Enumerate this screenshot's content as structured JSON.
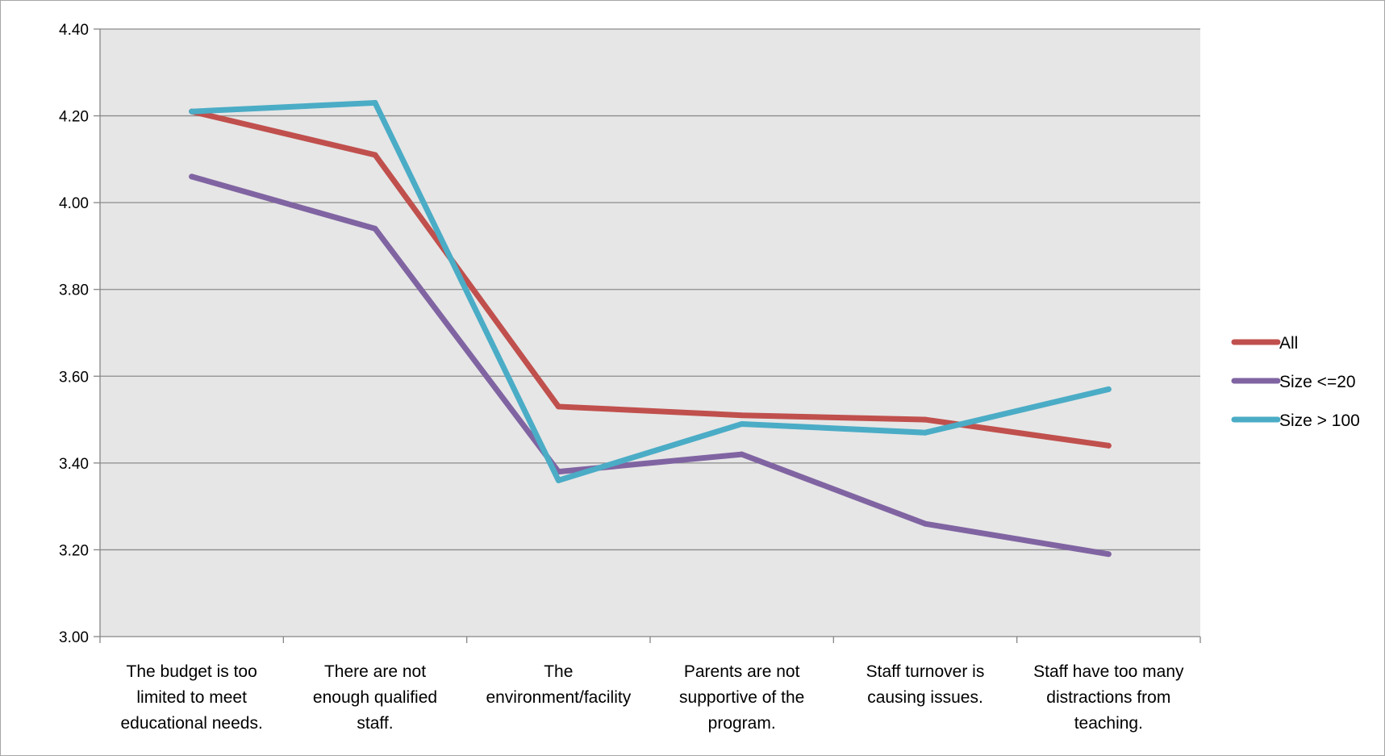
{
  "chart_data": {
    "type": "line",
    "title": "",
    "xlabel": "",
    "ylabel": "",
    "ylim": [
      3.0,
      4.4
    ],
    "yticks": [
      "3.00",
      "3.20",
      "3.40",
      "3.60",
      "3.80",
      "4.00",
      "4.20",
      "4.40"
    ],
    "grid": true,
    "legend_position": "right",
    "categories": [
      [
        "The budget is too",
        "limited to meet",
        "educational needs."
      ],
      [
        "There are not",
        "enough qualified",
        "staff."
      ],
      [
        "The",
        "environment/facility"
      ],
      [
        "Parents are not",
        "supportive of the",
        "program."
      ],
      [
        "Staff turnover is",
        "causing issues."
      ],
      [
        "Staff have too many",
        "distractions from",
        "teaching."
      ]
    ],
    "series": [
      {
        "name": "All",
        "color": "#c0504d",
        "values": [
          4.21,
          4.11,
          3.53,
          3.51,
          3.5,
          3.44
        ]
      },
      {
        "name": "Size <=20",
        "color": "#8064a2",
        "values": [
          4.06,
          3.94,
          3.38,
          3.42,
          3.26,
          3.19
        ]
      },
      {
        "name": "Size > 100",
        "color": "#4bacc6",
        "values": [
          4.21,
          4.23,
          3.36,
          3.49,
          3.47,
          3.57
        ]
      }
    ]
  }
}
